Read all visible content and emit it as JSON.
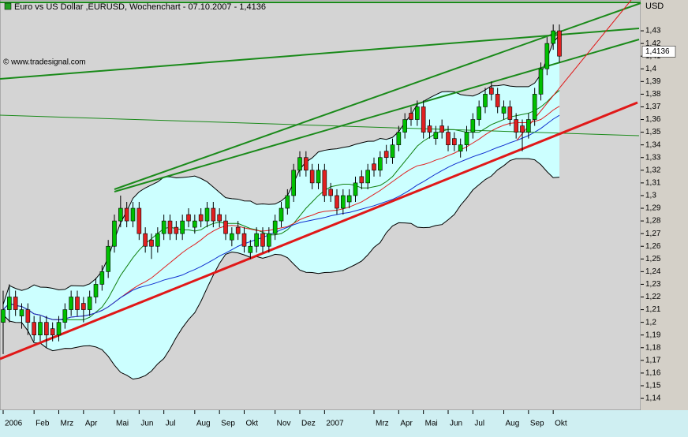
{
  "chart_data": {
    "type": "candlestick",
    "title": "Euro vs US Dollar ,EURUSD, Wochenchart - 07.10.2007 - 1,4136",
    "watermark": "© www.tradesignal.com",
    "y_axis_label": "USD",
    "last_price": {
      "value": 1.4136,
      "label": "1,4136"
    },
    "colors": {
      "up": "#00c000",
      "down": "#e02020"
    },
    "ylim": [
      1.1307,
      1.4543
    ],
    "yticks": [
      {
        "value": 1.14,
        "label": "1,14"
      },
      {
        "value": 1.15,
        "label": "1,15"
      },
      {
        "value": 1.16,
        "label": "1,16"
      },
      {
        "value": 1.17,
        "label": "1,17"
      },
      {
        "value": 1.18,
        "label": "1,18"
      },
      {
        "value": 1.19,
        "label": "1,19"
      },
      {
        "value": 1.2,
        "label": "1,2"
      },
      {
        "value": 1.21,
        "label": "1,21"
      },
      {
        "value": 1.22,
        "label": "1,22"
      },
      {
        "value": 1.23,
        "label": "1,23"
      },
      {
        "value": 1.24,
        "label": "1,24"
      },
      {
        "value": 1.25,
        "label": "1,25"
      },
      {
        "value": 1.26,
        "label": "1,26"
      },
      {
        "value": 1.27,
        "label": "1,27"
      },
      {
        "value": 1.28,
        "label": "1,28"
      },
      {
        "value": 1.29,
        "label": "1,29"
      },
      {
        "value": 1.3,
        "label": "1,3"
      },
      {
        "value": 1.31,
        "label": "1,31"
      },
      {
        "value": 1.32,
        "label": "1,32"
      },
      {
        "value": 1.33,
        "label": "1,33"
      },
      {
        "value": 1.34,
        "label": "1,34"
      },
      {
        "value": 1.35,
        "label": "1,35"
      },
      {
        "value": 1.36,
        "label": "1,36"
      },
      {
        "value": 1.37,
        "label": "1,37"
      },
      {
        "value": 1.38,
        "label": "1,38"
      },
      {
        "value": 1.39,
        "label": "1,39"
      },
      {
        "value": 1.4,
        "label": "1,4"
      },
      {
        "value": 1.41,
        "label": "1,41"
      },
      {
        "value": 1.42,
        "label": "1,42"
      },
      {
        "value": 1.43,
        "label": "1,43"
      }
    ],
    "categories": [
      "2006",
      null,
      null,
      null,
      null,
      "Feb",
      null,
      null,
      null,
      "Mrz",
      null,
      null,
      null,
      "Apr",
      null,
      null,
      null,
      null,
      "Mai",
      null,
      null,
      null,
      "Jun",
      null,
      null,
      null,
      "Jul",
      null,
      null,
      null,
      null,
      "Aug",
      null,
      null,
      null,
      "Sep",
      null,
      null,
      null,
      "Okt",
      null,
      null,
      null,
      null,
      "Nov",
      null,
      null,
      null,
      "Dez",
      null,
      null,
      null,
      "2007",
      null,
      null,
      null,
      null,
      null,
      null,
      null,
      "Mrz",
      null,
      null,
      null,
      "Apr",
      null,
      null,
      null,
      "Mai",
      null,
      null,
      null,
      "Jun",
      null,
      null,
      null,
      "Jul",
      null,
      null,
      null,
      null,
      "Aug",
      null,
      null,
      null,
      "Sep",
      null,
      null,
      null,
      "Okt",
      null
    ],
    "open": [
      1.2,
      1.21,
      1.22,
      1.205,
      1.21,
      1.2,
      1.19,
      1.2,
      1.195,
      1.19,
      1.2,
      1.21,
      1.22,
      1.215,
      1.21,
      1.22,
      1.23,
      1.24,
      1.26,
      1.28,
      1.29,
      1.28,
      1.29,
      1.27,
      1.265,
      1.26,
      1.27,
      1.28,
      1.275,
      1.27,
      1.285,
      1.275,
      1.285,
      1.28,
      1.29,
      1.285,
      1.28,
      1.265,
      1.275,
      1.27,
      1.255,
      1.26,
      1.27,
      1.26,
      1.27,
      1.28,
      1.29,
      1.3,
      1.32,
      1.33,
      1.32,
      1.31,
      1.32,
      1.305,
      1.3,
      1.29,
      1.295,
      1.3,
      1.315,
      1.31,
      1.325,
      1.32,
      1.335,
      1.33,
      1.34,
      1.35,
      1.365,
      1.36,
      1.37,
      1.355,
      1.345,
      1.355,
      1.35,
      1.345,
      1.335,
      1.34,
      1.35,
      1.36,
      1.37,
      1.385,
      1.38,
      1.365,
      1.37,
      1.36,
      1.355,
      1.35,
      1.36,
      1.38,
      1.4,
      1.42,
      1.43
    ],
    "high": [
      1.225,
      1.23,
      1.225,
      1.215,
      1.215,
      1.205,
      1.205,
      1.205,
      1.2,
      1.205,
      1.215,
      1.225,
      1.225,
      1.22,
      1.225,
      1.235,
      1.245,
      1.265,
      1.285,
      1.3,
      1.295,
      1.295,
      1.295,
      1.275,
      1.27,
      1.275,
      1.285,
      1.285,
      1.28,
      1.285,
      1.29,
      1.285,
      1.29,
      1.295,
      1.295,
      1.29,
      1.285,
      1.275,
      1.28,
      1.275,
      1.265,
      1.275,
      1.275,
      1.275,
      1.285,
      1.295,
      1.305,
      1.325,
      1.335,
      1.335,
      1.325,
      1.325,
      1.325,
      1.31,
      1.305,
      1.305,
      1.305,
      1.315,
      1.32,
      1.325,
      1.33,
      1.335,
      1.34,
      1.345,
      1.355,
      1.365,
      1.37,
      1.375,
      1.375,
      1.36,
      1.355,
      1.36,
      1.355,
      1.35,
      1.345,
      1.355,
      1.365,
      1.375,
      1.385,
      1.39,
      1.385,
      1.375,
      1.375,
      1.365,
      1.36,
      1.365,
      1.385,
      1.405,
      1.425,
      1.435,
      1.435
    ],
    "low": [
      1.175,
      1.2,
      1.205,
      1.195,
      1.19,
      1.185,
      1.185,
      1.18,
      1.185,
      1.185,
      1.195,
      1.205,
      1.205,
      1.2,
      1.205,
      1.215,
      1.225,
      1.235,
      1.255,
      1.275,
      1.275,
      1.275,
      1.265,
      1.255,
      1.25,
      1.255,
      1.265,
      1.265,
      1.265,
      1.265,
      1.275,
      1.27,
      1.275,
      1.275,
      1.275,
      1.275,
      1.265,
      1.26,
      1.265,
      1.255,
      1.25,
      1.255,
      1.255,
      1.255,
      1.265,
      1.275,
      1.285,
      1.295,
      1.315,
      1.315,
      1.305,
      1.305,
      1.295,
      1.295,
      1.285,
      1.285,
      1.29,
      1.295,
      1.305,
      1.305,
      1.315,
      1.315,
      1.325,
      1.325,
      1.335,
      1.345,
      1.355,
      1.355,
      1.345,
      1.345,
      1.34,
      1.345,
      1.335,
      1.335,
      1.33,
      1.335,
      1.345,
      1.355,
      1.365,
      1.375,
      1.365,
      1.36,
      1.355,
      1.345,
      1.335,
      1.345,
      1.355,
      1.375,
      1.395,
      1.415,
      1.405
    ],
    "close": [
      1.21,
      1.22,
      1.21,
      1.21,
      1.2,
      1.19,
      1.2,
      1.19,
      1.19,
      1.2,
      1.21,
      1.22,
      1.21,
      1.21,
      1.22,
      1.23,
      1.24,
      1.26,
      1.28,
      1.29,
      1.28,
      1.29,
      1.27,
      1.26,
      1.26,
      1.27,
      1.28,
      1.27,
      1.27,
      1.28,
      1.28,
      1.28,
      1.28,
      1.29,
      1.28,
      1.28,
      1.27,
      1.27,
      1.27,
      1.26,
      1.26,
      1.27,
      1.26,
      1.27,
      1.28,
      1.29,
      1.3,
      1.32,
      1.33,
      1.32,
      1.31,
      1.32,
      1.3,
      1.3,
      1.29,
      1.3,
      1.3,
      1.31,
      1.31,
      1.32,
      1.32,
      1.33,
      1.33,
      1.34,
      1.35,
      1.36,
      1.36,
      1.37,
      1.35,
      1.35,
      1.35,
      1.35,
      1.34,
      1.34,
      1.34,
      1.35,
      1.36,
      1.37,
      1.38,
      1.38,
      1.37,
      1.37,
      1.36,
      1.35,
      1.35,
      1.36,
      1.38,
      1.4,
      1.42,
      1.43,
      1.41
    ]
  }
}
